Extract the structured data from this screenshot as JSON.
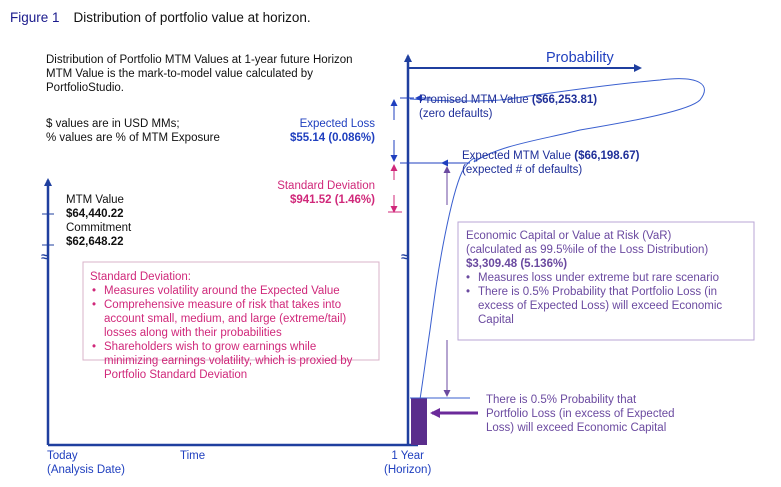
{
  "figure": {
    "number": "Figure 1",
    "title": "Distribution of portfolio value at horizon."
  },
  "intro": {
    "line1": "Distribution of Portfolio MTM Values at 1-year future Horizon",
    "line2": "MTM Value is the mark-to-model value calculated by",
    "line3": "PortfolioStudio.",
    "units1": "$ values are in USD MMs;",
    "units2": "% values are % of MTM Exposure"
  },
  "probability_label": "Probability",
  "left_axis": {
    "mtm_label": "MTM Value",
    "mtm_value": "$64,440.22",
    "commitment_label": "Commitment",
    "commitment_value": "$62,648.22",
    "break_mark": "≈"
  },
  "right_axis": {
    "break_mark": "≈"
  },
  "expected_loss": {
    "label": "Expected Loss",
    "value": "$55.14 (0.086%)"
  },
  "std_dev_top": {
    "label": "Standard Deviation",
    "value": "$941.52 (1.46%)"
  },
  "promised": {
    "label": "Promised MTM Value ",
    "value": "($66,253.81)",
    "note": "(zero defaults)"
  },
  "expected_mtm": {
    "label": "Expected MTM Value ",
    "value": "($66,198.67)",
    "note": "(expected # of defaults)"
  },
  "std_dev_box": {
    "title": "Standard Deviation:",
    "bullets": [
      [
        "Measures volatility around the Expected Value"
      ],
      [
        "Comprehensive measure of risk that takes into",
        "account small, medium, and large (extreme/tail)",
        "losses along with their probabilities"
      ],
      [
        "Shareholders wish to grow earnings while",
        "minimizing earnings volatility, which is proxied by",
        "Portfolio Standard Deviation"
      ]
    ]
  },
  "economic_capital": {
    "line1": "Economic Capital or Value at Risk (VaR)",
    "line2": "(calculated as 99.5%ile of the Loss Distribution)",
    "value": "$3,309.48 (5.136%)",
    "bullets": [
      [
        "Measures loss under extreme but rare scenario"
      ],
      [
        "There is 0.5% Probability that Portfolio Loss (in",
        "excess of Expected Loss) will exceed Economic",
        "Capital"
      ]
    ]
  },
  "tail_note": {
    "lines": [
      "There is 0.5% Probability that",
      "Portfolio Loss (in excess of Expected",
      "Loss) will exceed Economic Capital"
    ]
  },
  "x_axis": {
    "today_line1": "Today",
    "today_line2": "(Analysis Date)",
    "time": "Time",
    "horizon_line1": "1 Year",
    "horizon_line2": "(Horizon)"
  },
  "colors": {
    "blue": "#1f3fbf",
    "magenta": "#d0287a",
    "purple": "#6b4aa0",
    "axis": "#1f3f9f"
  }
}
